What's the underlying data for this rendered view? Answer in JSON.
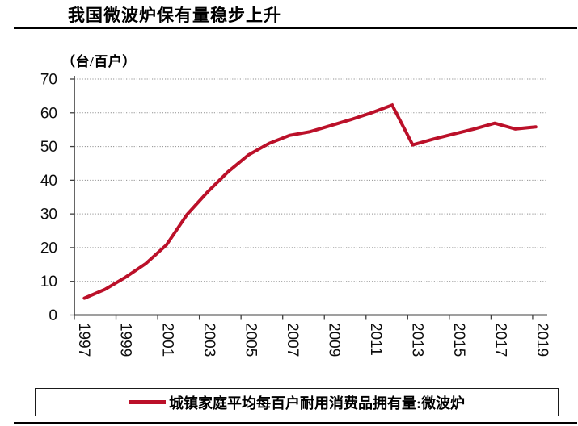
{
  "header": {
    "title": "我国微波炉保有量稳步上升"
  },
  "chart_data": {
    "type": "line",
    "title": "我国微波炉保有量稳步上升",
    "unit_label": "（台/百户）",
    "categories": [
      1997,
      1998,
      1999,
      2000,
      2001,
      2002,
      2003,
      2004,
      2005,
      2006,
      2007,
      2008,
      2009,
      2010,
      2011,
      2012,
      2013,
      2014,
      2015,
      2016,
      2017,
      2018,
      2019
    ],
    "series": [
      {
        "name": "城镇家庭平均每百户耐用消费品拥有量:微波炉",
        "color": "#bb1029",
        "values": [
          5.0,
          7.6,
          11.2,
          15.3,
          20.8,
          29.8,
          36.5,
          42.5,
          47.5,
          50.9,
          53.3,
          54.4,
          56.2,
          58.0,
          60.0,
          62.3,
          50.5,
          52.2,
          53.7,
          55.2,
          56.9,
          55.2,
          55.8
        ]
      }
    ],
    "ylim": [
      0,
      70
    ],
    "yticks": [
      0,
      10,
      20,
      30,
      40,
      50,
      60,
      70
    ],
    "xticks": [
      1997,
      1999,
      2001,
      2003,
      2005,
      2007,
      2009,
      2011,
      2013,
      2015,
      2017,
      2019
    ],
    "xtick_rotation_deg": 90,
    "grid": "horizontal-dotted",
    "legend_position": "bottom"
  },
  "legend": {
    "items": [
      {
        "label": "城镇家庭平均每百户耐用消费品拥有量:微波炉",
        "color": "#bb1029"
      }
    ]
  },
  "colors": {
    "accent": "#bb1029",
    "axis": "#3f3f3f",
    "grid": "#8f8f8f",
    "rule": "#000000",
    "text": "#0d0d0d"
  }
}
